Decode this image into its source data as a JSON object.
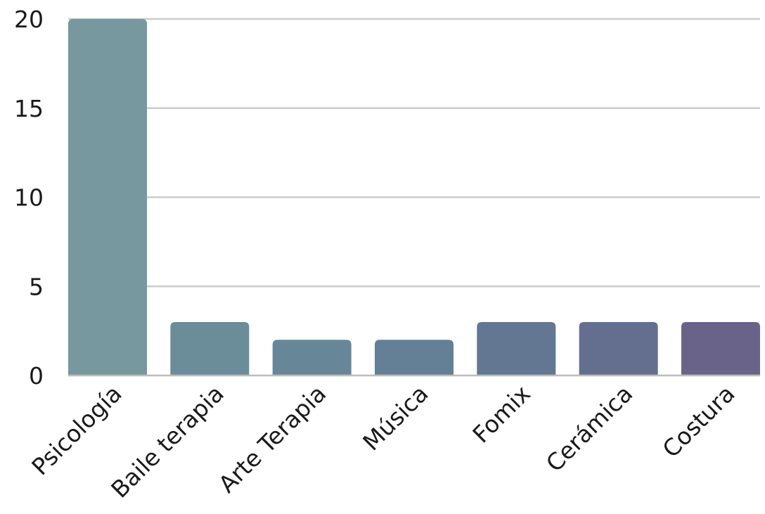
{
  "chart_data": {
    "type": "bar",
    "title": "",
    "xlabel": "",
    "ylabel": "",
    "categories": [
      "Psicología",
      "Baile terapia",
      "Arte Terapia",
      "Música",
      "Fomix",
      "Cerámica",
      "Costura"
    ],
    "values": [
      20,
      3,
      2,
      2,
      3,
      3,
      3
    ],
    "ylim": [
      0,
      20
    ],
    "yticks": [
      0,
      5,
      10,
      15,
      20
    ],
    "grid": true,
    "legend": "none",
    "colors": [
      "#76989e",
      "#6b8d99",
      "#678799",
      "#638096",
      "#637793",
      "#646f90",
      "#69638a"
    ]
  }
}
